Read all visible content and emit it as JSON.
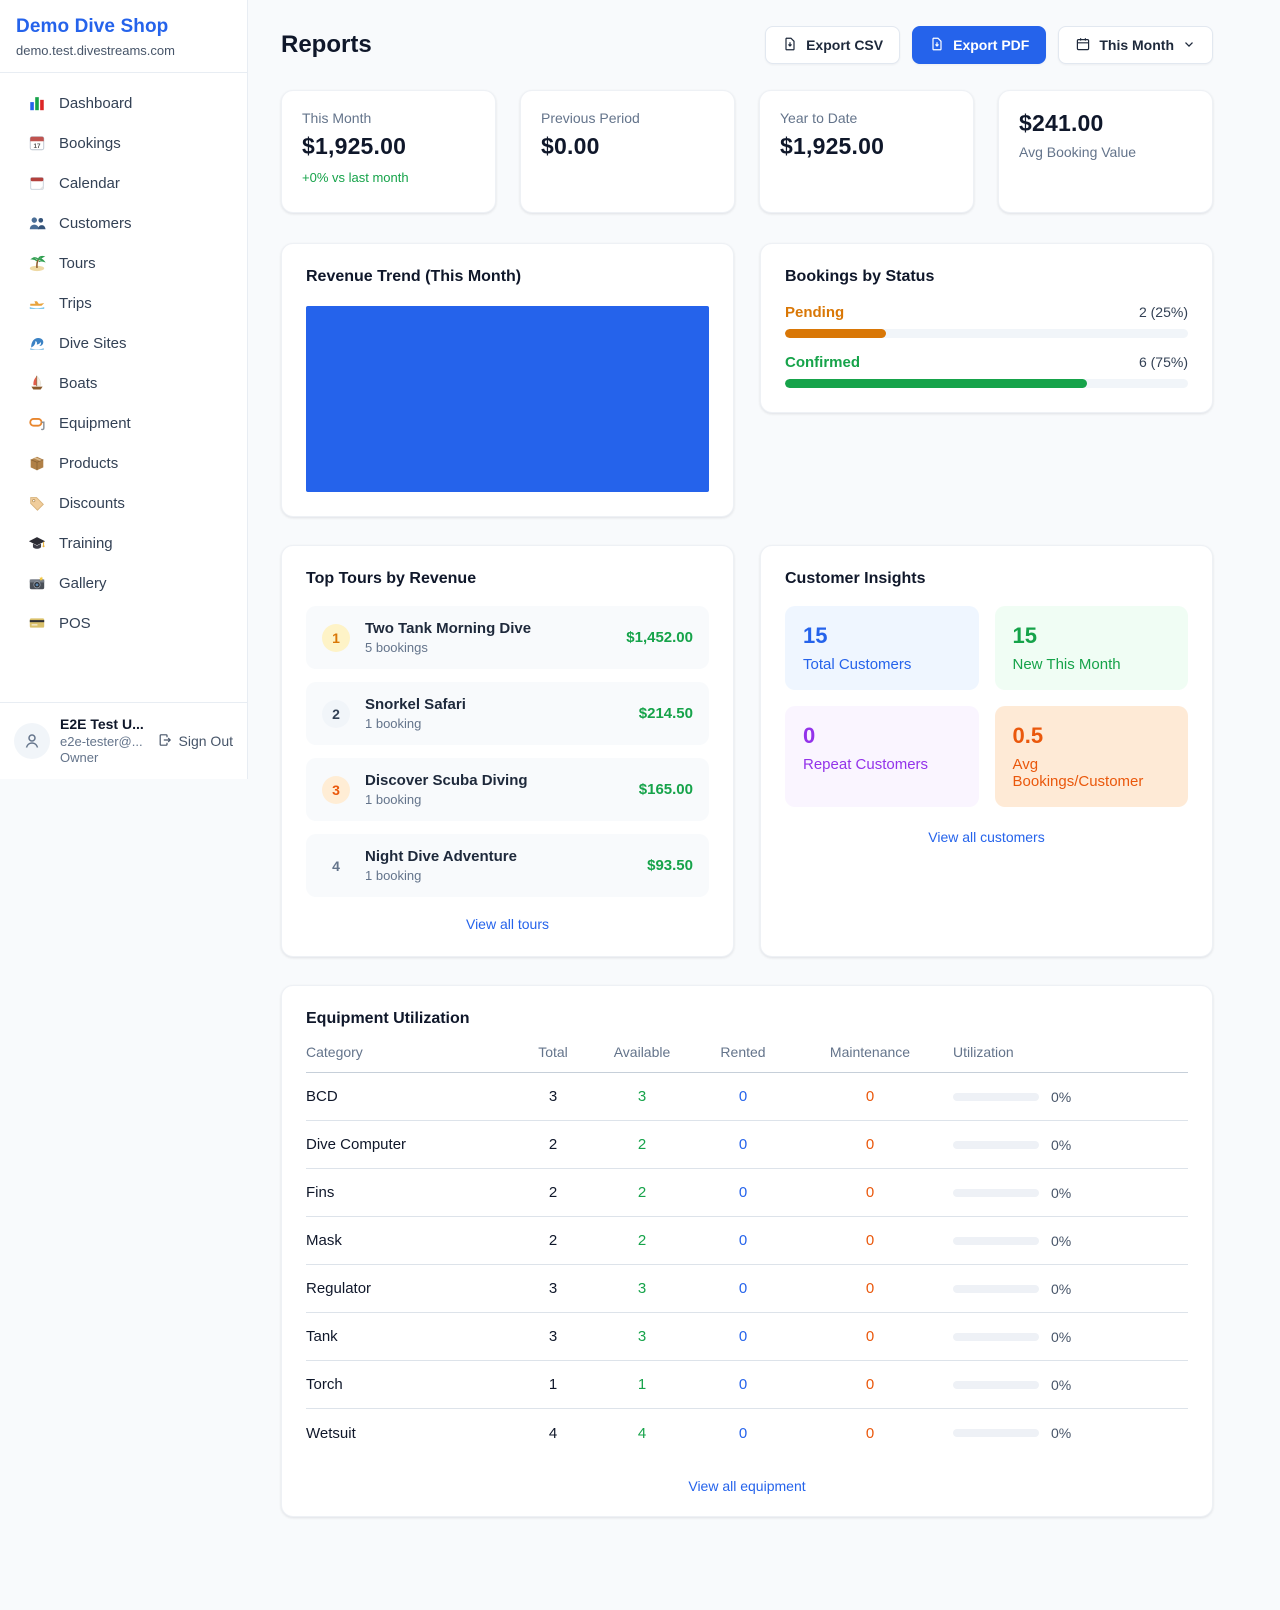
{
  "sidebar": {
    "shop_name": "Demo Dive Shop",
    "shop_domain": "demo.test.divestreams.com",
    "nav": [
      {
        "label": "Dashboard",
        "icon": "dashboard-icon"
      },
      {
        "label": "Bookings",
        "icon": "bookings-calendar-icon"
      },
      {
        "label": "Calendar",
        "icon": "calendar-pad-icon"
      },
      {
        "label": "Customers",
        "icon": "customers-icon"
      },
      {
        "label": "Tours",
        "icon": "palm-island-icon"
      },
      {
        "label": "Trips",
        "icon": "speedboat-icon"
      },
      {
        "label": "Dive Sites",
        "icon": "wave-icon"
      },
      {
        "label": "Boats",
        "icon": "sailboat-icon"
      },
      {
        "label": "Equipment",
        "icon": "dive-mask-icon"
      },
      {
        "label": "Products",
        "icon": "package-icon"
      },
      {
        "label": "Discounts",
        "icon": "tag-icon"
      },
      {
        "label": "Training",
        "icon": "graduation-cap-icon"
      },
      {
        "label": "Gallery",
        "icon": "camera-icon"
      },
      {
        "label": "POS",
        "icon": "credit-card-icon"
      }
    ],
    "user": {
      "name": "E2E Test U...",
      "email": "e2e-tester@...",
      "role": "Owner",
      "sign_out_label": "Sign Out"
    }
  },
  "header": {
    "title": "Reports",
    "export_csv_label": "Export CSV",
    "export_pdf_label": "Export PDF",
    "period_selector": "This Month"
  },
  "stats": [
    {
      "label": "This Month",
      "value": "$1,925.00",
      "delta": "+0% vs last month",
      "layout": "label-first"
    },
    {
      "label": "Previous Period",
      "value": "$0.00",
      "layout": "label-first"
    },
    {
      "label": "Year to Date",
      "value": "$1,925.00",
      "layout": "label-first"
    },
    {
      "label": "Avg Booking Value",
      "value": "$241.00",
      "layout": "value-first"
    }
  ],
  "revenue_trend": {
    "title": "Revenue Trend (This Month)",
    "chart_color": "#2563eb"
  },
  "chart_data": {
    "type": "bar",
    "title": "Revenue Trend (This Month)",
    "categories": [
      "This Month"
    ],
    "values": [
      1925
    ],
    "note": "single full-width solid blue bar filling entire plot area, no axes or labels visible",
    "bar_color": "#2563eb"
  },
  "bookings_by_status": {
    "title": "Bookings by Status",
    "rows": [
      {
        "label": "Pending",
        "value_text": "2 (25%)",
        "percent": 25,
        "color": "#d97706"
      },
      {
        "label": "Confirmed",
        "value_text": "6 (75%)",
        "percent": 75,
        "color": "#16a34a"
      }
    ]
  },
  "top_tours": {
    "title": "Top Tours by Revenue",
    "link": "View all tours",
    "items": [
      {
        "rank": "1",
        "name": "Two Tank Morning Dive",
        "bookings": "5 bookings",
        "revenue": "$1,452.00",
        "badge_bg": "#fef3c7",
        "badge_color": "#d97706"
      },
      {
        "rank": "2",
        "name": "Snorkel Safari",
        "bookings": "1 booking",
        "revenue": "$214.50",
        "badge_bg": "#f1f5f9",
        "badge_color": "#334155"
      },
      {
        "rank": "3",
        "name": "Discover Scuba Diving",
        "bookings": "1 booking",
        "revenue": "$165.00",
        "badge_bg": "#ffedd5",
        "badge_color": "#ea580c"
      },
      {
        "rank": "4",
        "name": "Night Dive Adventure",
        "bookings": "1 booking",
        "revenue": "$93.50",
        "badge_bg": "transparent",
        "badge_color": "#64748b"
      }
    ]
  },
  "customer_insights": {
    "title": "Customer Insights",
    "link": "View all customers",
    "tiles": [
      {
        "value": "15",
        "label": "Total Customers",
        "bg": "#eff6ff",
        "color": "#2563eb"
      },
      {
        "value": "15",
        "label": "New This Month",
        "bg": "#f0fdf4",
        "color": "#16a34a"
      },
      {
        "value": "0",
        "label": "Repeat Customers",
        "bg": "#faf5ff",
        "color": "#9333ea"
      },
      {
        "value": "0.5",
        "label": "Avg Bookings/Customer",
        "bg": "#feead6",
        "color": "#ea580c"
      }
    ]
  },
  "equipment": {
    "title": "Equipment Utilization",
    "link": "View all equipment",
    "columns": [
      "Category",
      "Total",
      "Available",
      "Rented",
      "Maintenance",
      "Utilization"
    ],
    "rows": [
      {
        "category": "BCD",
        "total": "3",
        "available": "3",
        "rented": "0",
        "maintenance": "0",
        "utilization": "0%"
      },
      {
        "category": "Dive Computer",
        "total": "2",
        "available": "2",
        "rented": "0",
        "maintenance": "0",
        "utilization": "0%"
      },
      {
        "category": "Fins",
        "total": "2",
        "available": "2",
        "rented": "0",
        "maintenance": "0",
        "utilization": "0%"
      },
      {
        "category": "Mask",
        "total": "2",
        "available": "2",
        "rented": "0",
        "maintenance": "0",
        "utilization": "0%"
      },
      {
        "category": "Regulator",
        "total": "3",
        "available": "3",
        "rented": "0",
        "maintenance": "0",
        "utilization": "0%"
      },
      {
        "category": "Tank",
        "total": "3",
        "available": "3",
        "rented": "0",
        "maintenance": "0",
        "utilization": "0%"
      },
      {
        "category": "Torch",
        "total": "1",
        "available": "1",
        "rented": "0",
        "maintenance": "0",
        "utilization": "0%"
      },
      {
        "category": "Wetsuit",
        "total": "4",
        "available": "4",
        "rented": "0",
        "maintenance": "0",
        "utilization": "0%"
      }
    ]
  },
  "colors": {
    "accent_blue": "#2563eb",
    "green": "#16a34a",
    "amber": "#d97706",
    "orange": "#ea580c",
    "page_bg": "#f8fafc"
  }
}
